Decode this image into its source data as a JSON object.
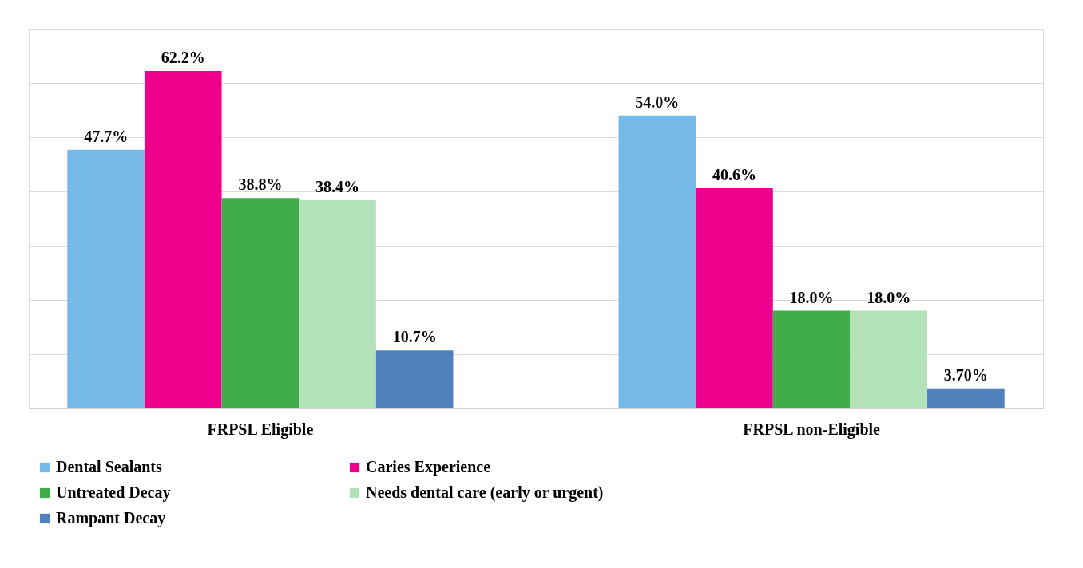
{
  "chart_data": {
    "type": "bar",
    "categories": [
      "FRPSL Eligible",
      "FRPSL non-Eligible"
    ],
    "series": [
      {
        "name": "Dental Sealants",
        "color": "#74b9e7",
        "values": [
          47.7,
          54.0
        ],
        "value_labels": [
          "47.7%",
          "54.0%"
        ]
      },
      {
        "name": "Caries Experience",
        "color": "#ec008c",
        "values": [
          62.2,
          40.6
        ],
        "value_labels": [
          "62.2%",
          "40.6%"
        ]
      },
      {
        "name": "Untreated Decay",
        "color": "#41ad49",
        "values": [
          38.8,
          18.0
        ],
        "value_labels": [
          "38.8%",
          "18.0%"
        ]
      },
      {
        "name": "Needs dental care (early or urgent)",
        "color": "#b3e2b8",
        "values": [
          38.4,
          18.0
        ],
        "value_labels": [
          "38.4%",
          "18.0%"
        ]
      },
      {
        "name": "Rampant Decay",
        "color": "#4f81bd",
        "values": [
          10.7,
          3.7
        ],
        "value_labels": [
          "10.7%",
          "3.70%"
        ]
      }
    ],
    "ylim": [
      0,
      70
    ],
    "yticks": [
      {
        "value": 0,
        "label": null
      },
      {
        "value": 10,
        "label": null
      },
      {
        "value": 20,
        "label": null
      },
      {
        "value": 30,
        "label": null
      },
      {
        "value": 40,
        "label": null
      },
      {
        "value": 50,
        "label": null
      },
      {
        "value": 60,
        "label": null
      },
      {
        "value": 70,
        "label": null
      }
    ],
    "tick_labels": "x",
    "grid": "y",
    "legend": "bottom"
  }
}
